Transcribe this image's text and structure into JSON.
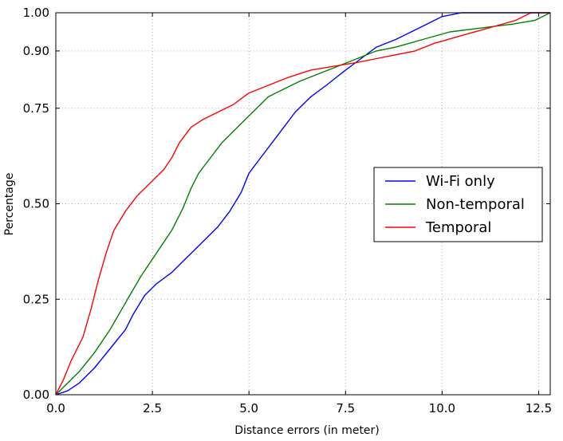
{
  "chart_data": {
    "type": "line",
    "title": "",
    "xlabel": "Distance errors (in meter)",
    "ylabel": "Percentage",
    "xlim": [
      0,
      12.8
    ],
    "ylim": [
      0,
      1.0
    ],
    "xticks": [
      0,
      2.5,
      5,
      7.5,
      10,
      12.5
    ],
    "xtick_labels": [
      "0.0",
      "2.5",
      "5.0",
      "7.5",
      "10.0",
      "12.5"
    ],
    "yticks": [
      0,
      0.25,
      0.5,
      0.75,
      0.9,
      1.0
    ],
    "ytick_labels": [
      "0.00",
      "0.25",
      "0.50",
      "0.75",
      "0.90",
      "1.00"
    ],
    "grid": true,
    "legend_position": "center-right",
    "series": [
      {
        "name": "Wi-Fi only",
        "color": "#0000ff",
        "points": [
          [
            0,
            0
          ],
          [
            0.3,
            0.01
          ],
          [
            0.6,
            0.03
          ],
          [
            1.0,
            0.07
          ],
          [
            1.4,
            0.12
          ],
          [
            1.8,
            0.17
          ],
          [
            2.0,
            0.21
          ],
          [
            2.3,
            0.26
          ],
          [
            2.6,
            0.29
          ],
          [
            3.0,
            0.32
          ],
          [
            3.3,
            0.35
          ],
          [
            3.6,
            0.38
          ],
          [
            3.9,
            0.41
          ],
          [
            4.2,
            0.44
          ],
          [
            4.5,
            0.48
          ],
          [
            4.8,
            0.53
          ],
          [
            5.0,
            0.58
          ],
          [
            5.3,
            0.62
          ],
          [
            5.6,
            0.66
          ],
          [
            5.9,
            0.7
          ],
          [
            6.2,
            0.74
          ],
          [
            6.6,
            0.78
          ],
          [
            7.0,
            0.81
          ],
          [
            7.5,
            0.85
          ],
          [
            7.9,
            0.88
          ],
          [
            8.3,
            0.91
          ],
          [
            8.8,
            0.93
          ],
          [
            9.2,
            0.95
          ],
          [
            9.6,
            0.97
          ],
          [
            10.0,
            0.99
          ],
          [
            10.5,
            1.0
          ],
          [
            12.8,
            1.0
          ]
        ]
      },
      {
        "name": "Non-temporal",
        "color": "#008000",
        "points": [
          [
            0,
            0
          ],
          [
            0.3,
            0.03
          ],
          [
            0.6,
            0.06
          ],
          [
            1.0,
            0.11
          ],
          [
            1.4,
            0.17
          ],
          [
            1.8,
            0.24
          ],
          [
            2.2,
            0.31
          ],
          [
            2.6,
            0.37
          ],
          [
            3.0,
            0.43
          ],
          [
            3.3,
            0.49
          ],
          [
            3.5,
            0.54
          ],
          [
            3.7,
            0.58
          ],
          [
            4.0,
            0.62
          ],
          [
            4.3,
            0.66
          ],
          [
            4.6,
            0.69
          ],
          [
            4.9,
            0.72
          ],
          [
            5.2,
            0.75
          ],
          [
            5.5,
            0.78
          ],
          [
            5.9,
            0.8
          ],
          [
            6.3,
            0.82
          ],
          [
            6.8,
            0.84
          ],
          [
            7.3,
            0.86
          ],
          [
            7.8,
            0.88
          ],
          [
            8.3,
            0.9
          ],
          [
            8.8,
            0.91
          ],
          [
            9.5,
            0.93
          ],
          [
            10.2,
            0.95
          ],
          [
            11.0,
            0.96
          ],
          [
            11.8,
            0.97
          ],
          [
            12.4,
            0.98
          ],
          [
            12.8,
            1.0
          ]
        ]
      },
      {
        "name": "Temporal",
        "color": "#ff0000",
        "points": [
          [
            0,
            0
          ],
          [
            0.2,
            0.04
          ],
          [
            0.4,
            0.09
          ],
          [
            0.7,
            0.15
          ],
          [
            0.9,
            0.22
          ],
          [
            1.1,
            0.3
          ],
          [
            1.3,
            0.37
          ],
          [
            1.5,
            0.43
          ],
          [
            1.8,
            0.48
          ],
          [
            2.1,
            0.52
          ],
          [
            2.5,
            0.56
          ],
          [
            2.8,
            0.59
          ],
          [
            3.0,
            0.62
          ],
          [
            3.2,
            0.66
          ],
          [
            3.5,
            0.7
          ],
          [
            3.8,
            0.72
          ],
          [
            4.2,
            0.74
          ],
          [
            4.6,
            0.76
          ],
          [
            5.0,
            0.79
          ],
          [
            5.5,
            0.81
          ],
          [
            6.0,
            0.83
          ],
          [
            6.6,
            0.85
          ],
          [
            7.2,
            0.86
          ],
          [
            7.8,
            0.87
          ],
          [
            8.3,
            0.88
          ],
          [
            8.8,
            0.89
          ],
          [
            9.3,
            0.9
          ],
          [
            9.8,
            0.92
          ],
          [
            10.5,
            0.94
          ],
          [
            11.2,
            0.96
          ],
          [
            11.9,
            0.98
          ],
          [
            12.3,
            1.0
          ],
          [
            12.8,
            1.0
          ]
        ]
      }
    ]
  }
}
